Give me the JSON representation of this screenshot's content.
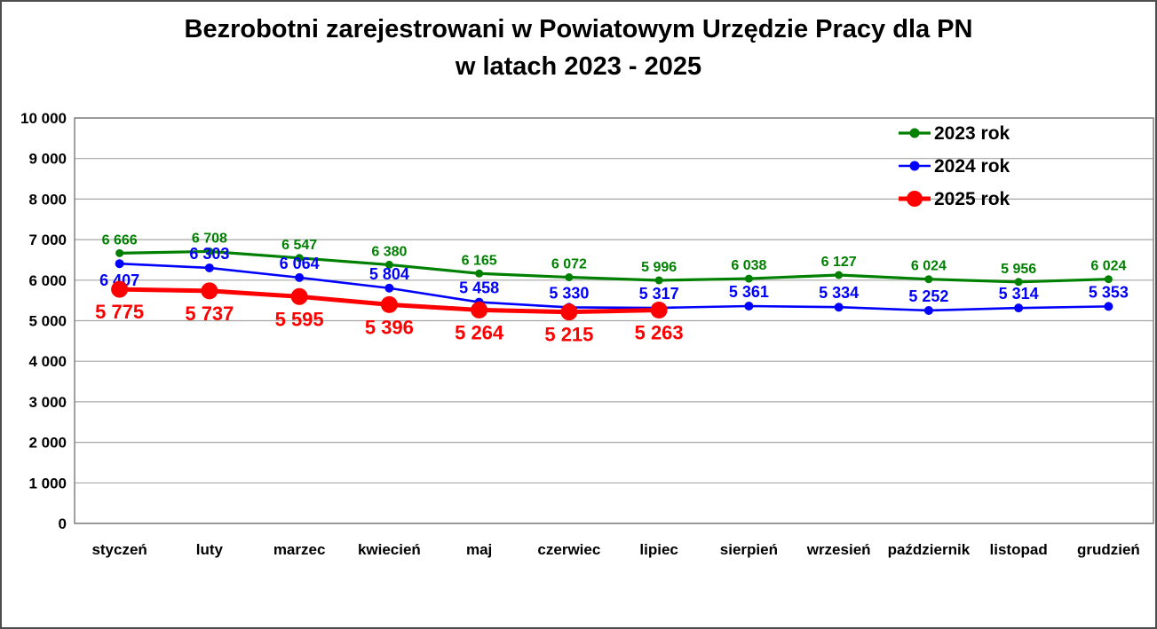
{
  "title": {
    "line1": "Bezrobotni zarejestrowani w Powiatowym Urzędzie Pracy dla PN",
    "line2": "w latach 2023 - 2025"
  },
  "colors": {
    "series_2023": "#008000",
    "series_2024": "#0000ff",
    "series_2025": "#ff0000",
    "gridline": "#a6a6a6",
    "plot_border": "#808080",
    "axis_text": "#000000",
    "frame_border": "#4d4d4d",
    "background": "#ffffff"
  },
  "chart_data": {
    "type": "line",
    "title": "Bezrobotni zarejestrowani w Powiatowym Urzędzie Pracy dla PN w latach 2023 - 2025",
    "categories": [
      "styczeń",
      "luty",
      "marzec",
      "kwiecień",
      "maj",
      "czerwiec",
      "lipiec",
      "sierpień",
      "wrzesień",
      "październik",
      "listopad",
      "grudzień"
    ],
    "series": [
      {
        "name": "2023 rok",
        "color": "#008000",
        "values": [
          6666,
          6708,
          6547,
          6380,
          6165,
          6072,
          5996,
          6038,
          6127,
          6024,
          5956,
          6024
        ]
      },
      {
        "name": "2024 rok",
        "color": "#0000ff",
        "values": [
          6407,
          6303,
          6064,
          5804,
          5458,
          5330,
          5317,
          5361,
          5334,
          5252,
          5314,
          5353
        ]
      },
      {
        "name": "2025 rok",
        "color": "#ff0000",
        "values": [
          5775,
          5737,
          5595,
          5396,
          5264,
          5215,
          5263
        ]
      }
    ],
    "xlabel": "",
    "ylabel": "",
    "ylim": [
      0,
      10000
    ],
    "ytick_step": 1000,
    "ytick_labels": [
      "0",
      "1 000",
      "2 000",
      "3 000",
      "4 000",
      "5 000",
      "6 000",
      "7 000",
      "8 000",
      "9 000",
      "10 000"
    ],
    "grid": "horizontal",
    "legend_position": "top-right",
    "data_labels": true
  }
}
